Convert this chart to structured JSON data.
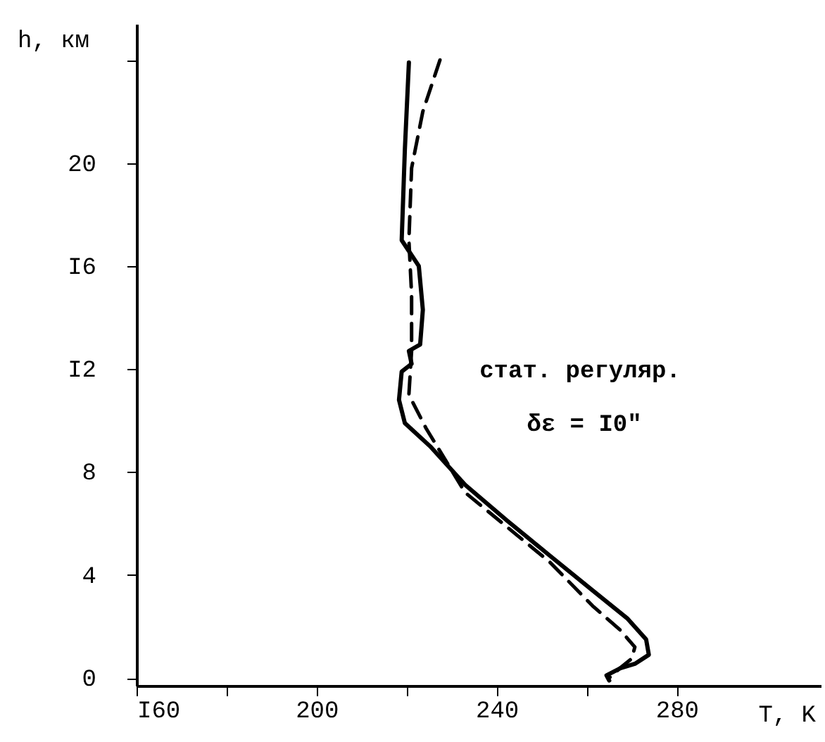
{
  "chart_data": {
    "type": "line",
    "xlabel": "T, K",
    "ylabel": "h, км",
    "xlim": [
      160,
      312
    ],
    "ylim": [
      -0.3,
      25.4
    ],
    "xticks": [
      {
        "value": 160,
        "label": "I60"
      },
      {
        "value": 180,
        "label": null
      },
      200,
      {
        "value": 220,
        "label": null
      },
      240,
      {
        "value": 260,
        "label": null
      },
      280
    ],
    "yticks": [
      0,
      4,
      8,
      {
        "value": 12,
        "label": "I2"
      },
      {
        "value": 16,
        "label": "I6"
      },
      20,
      {
        "value": 24,
        "label": null
      }
    ],
    "grid": false,
    "marker": "none",
    "annotations": [
      "стат. регуляр.",
      "δε = I0″"
    ],
    "series": [
      {
        "color": "#000000",
        "line_style": "solid",
        "x": [
          220.5,
          219.6,
          218.9,
          222.7,
          223.6,
          223.0,
          220.5,
          221.1,
          218.9,
          218.3,
          219.6,
          225.2,
          233.0,
          242.4,
          251.8,
          261.3,
          269.1,
          273.2,
          273.8,
          270.7,
          267.5,
          264.4,
          265.0
        ],
        "values": [
          23.9,
          20.5,
          17.0,
          16.0,
          14.3,
          12.95,
          12.7,
          12.2,
          11.9,
          10.8,
          9.9,
          9.0,
          7.5,
          6.1,
          4.75,
          3.4,
          2.3,
          1.5,
          0.9,
          0.55,
          0.38,
          0.1,
          -0.1
        ]
      },
      {
        "color": "#000000",
        "line_style": "dashed",
        "x": [
          227.4,
          223.6,
          221.1,
          220.5,
          221.1,
          221.1,
          220.5,
          224.3,
          233.0,
          242.4,
          251.8,
          261.3,
          267.5,
          270.7,
          270.0,
          267.5,
          265.0
        ],
        "values": [
          24.0,
          22.0,
          19.8,
          17.0,
          14.9,
          12.7,
          11.0,
          9.7,
          7.2,
          5.85,
          4.5,
          2.8,
          1.85,
          1.2,
          0.75,
          0.4,
          0.0
        ]
      }
    ]
  }
}
